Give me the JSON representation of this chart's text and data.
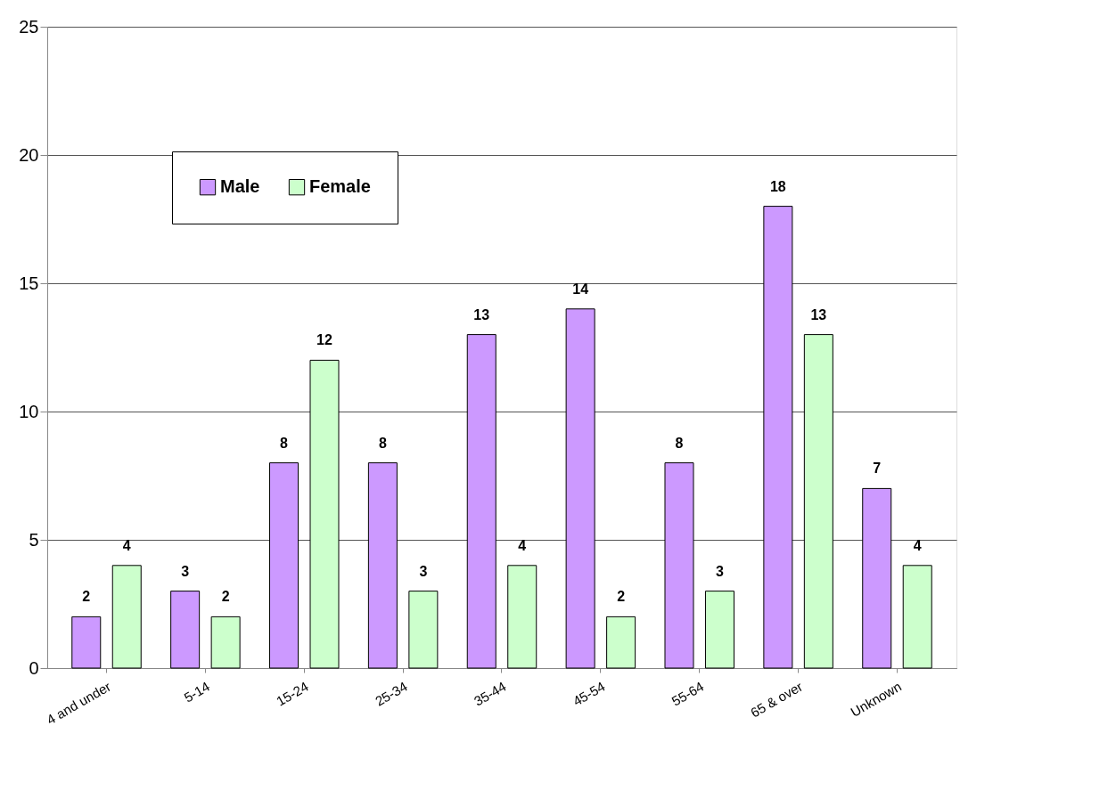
{
  "chart_data": {
    "type": "bar",
    "categories": [
      "4 and under",
      "5-14",
      "15-24",
      "25-34",
      "35-44",
      "45-54",
      "55-64",
      "65 & over",
      "Unknown"
    ],
    "series": [
      {
        "name": "Male",
        "color": "#cc99ff",
        "values": [
          2,
          3,
          8,
          8,
          13,
          14,
          8,
          18,
          7
        ]
      },
      {
        "name": "Female",
        "color": "#ccffcc",
        "values": [
          4,
          2,
          12,
          3,
          4,
          2,
          3,
          13,
          4
        ]
      }
    ],
    "ylim": [
      0,
      25
    ],
    "yticks": [
      0,
      5,
      10,
      15,
      20,
      25
    ],
    "grid": "y",
    "legend": "top left",
    "data_labels": true
  }
}
